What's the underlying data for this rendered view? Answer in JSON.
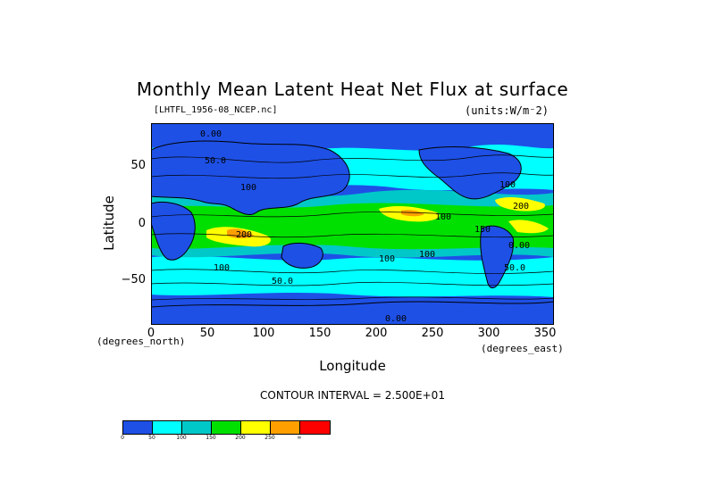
{
  "title": "Monthly Mean Latent Heat Net Flux at surface",
  "file_label": "[LHTFL_1956-08_NCEP.nc]",
  "units_label": "(units:W/m^2)",
  "axes": {
    "x_label": "Longitude",
    "y_label": "Latitude",
    "x_unit": "(degrees_east)",
    "y_unit": "(degrees_north)",
    "x_ticks": [
      "0",
      "50",
      "100",
      "150",
      "200",
      "250",
      "300",
      "350"
    ],
    "y_ticks": [
      "50",
      "0",
      "−50"
    ]
  },
  "contour_interval": "CONTOUR INTERVAL = 2.500E+01",
  "colorbar": {
    "colors": [
      "#1e50e6",
      "#00ffff",
      "#00c8c8",
      "#00e000",
      "#ffff00",
      "#ffa000",
      "#ff0000"
    ],
    "labels": [
      "0",
      "50",
      "100",
      "150",
      "200",
      "250",
      "∞"
    ]
  },
  "contour_labels": [
    "0.00",
    "100",
    "50.0",
    "100",
    "100",
    "200",
    "100",
    "150",
    "200",
    "100",
    "50.0",
    "100",
    "50.0",
    "0.00",
    "0.00"
  ],
  "chart_data": {
    "type": "heatmap",
    "title": "Monthly Mean Latent Heat Net Flux at surface",
    "subtitle": "[LHTFL_1956-08_NCEP.nc]",
    "units": "(units:W/m^2)",
    "xlabel": "Longitude",
    "ylabel": "Latitude",
    "xlim": [
      0,
      360
    ],
    "ylim": [
      -90,
      90
    ],
    "x_ticks": [
      0,
      50,
      100,
      150,
      200,
      250,
      300,
      350
    ],
    "y_ticks": [
      50,
      0,
      -50
    ],
    "contour_interval": 25,
    "levels": [
      0,
      50,
      100,
      150,
      200,
      250
    ],
    "level_colors": [
      "#1e50e6",
      "#00ffff",
      "#00c8c8",
      "#00e000",
      "#ffff00",
      "#ffa000",
      "#ff0000"
    ]
  }
}
